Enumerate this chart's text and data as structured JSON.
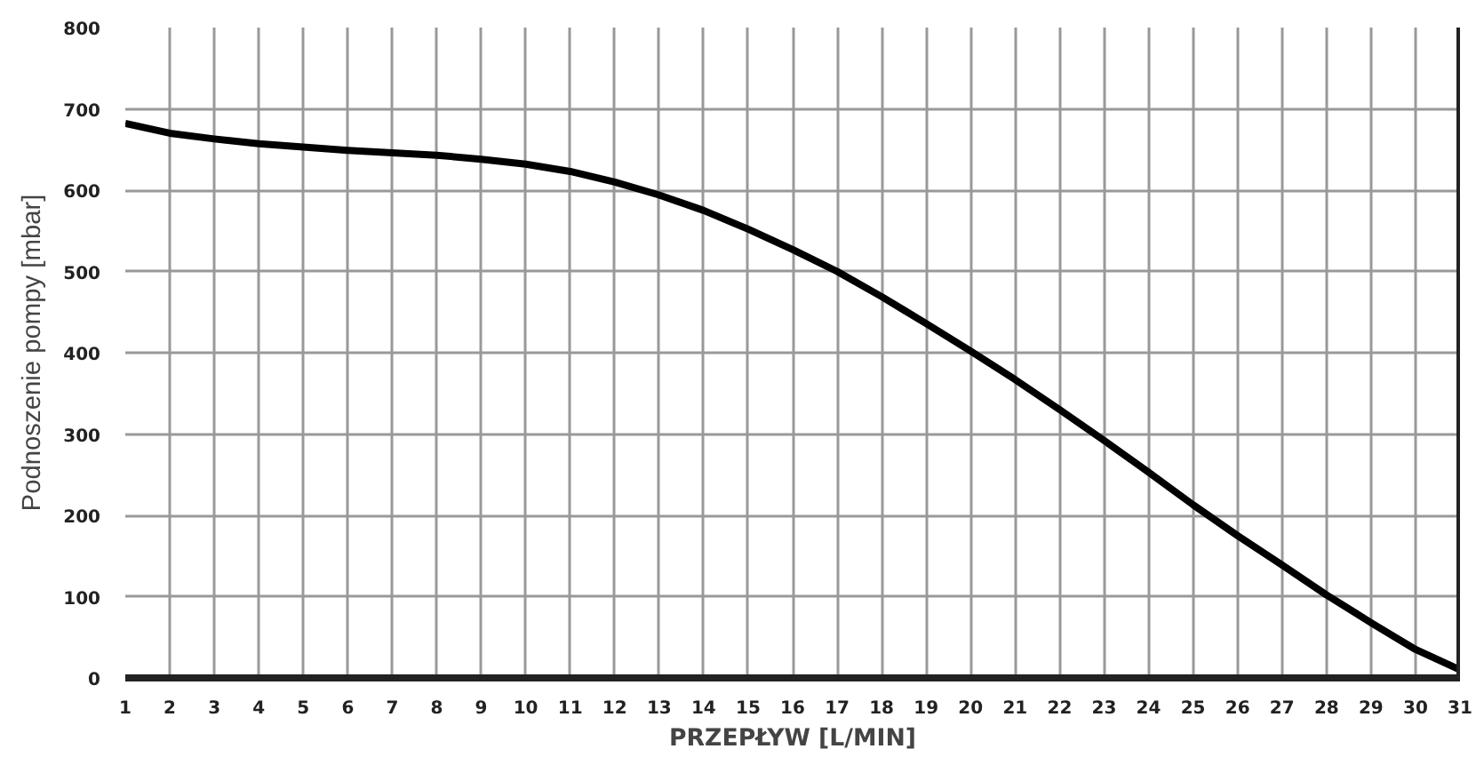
{
  "chart_data": {
    "type": "line",
    "xlabel": "PRZEPŁYW [L/MIN]",
    "ylabel": "Podnoszenie pompy [mbar]",
    "x": [
      1,
      2,
      3,
      4,
      5,
      6,
      7,
      8,
      9,
      10,
      11,
      12,
      13,
      14,
      15,
      16,
      17,
      18,
      19,
      20,
      21,
      22,
      23,
      24,
      25,
      26,
      27,
      28,
      29,
      30,
      31
    ],
    "series": [
      {
        "color": "#000000",
        "values": [
          682,
          670,
          663,
          657,
          653,
          649,
          646,
          643,
          638,
          632,
          623,
          610,
          594,
          575,
          552,
          527,
          500,
          469,
          436,
          402,
          367,
          330,
          292,
          253,
          213,
          175,
          139,
          102,
          68,
          35,
          10
        ]
      }
    ],
    "xlim": [
      1,
      31
    ],
    "ylim": [
      0,
      800
    ],
    "xticks": [
      1,
      2,
      3,
      4,
      5,
      6,
      7,
      8,
      9,
      10,
      11,
      12,
      13,
      14,
      15,
      16,
      17,
      18,
      19,
      20,
      21,
      22,
      23,
      24,
      25,
      26,
      27,
      28,
      29,
      30,
      31
    ],
    "yticks": [
      0,
      100,
      200,
      300,
      400,
      500,
      600,
      700,
      800
    ],
    "grid": true,
    "marker": "none",
    "line_style": "solid"
  }
}
